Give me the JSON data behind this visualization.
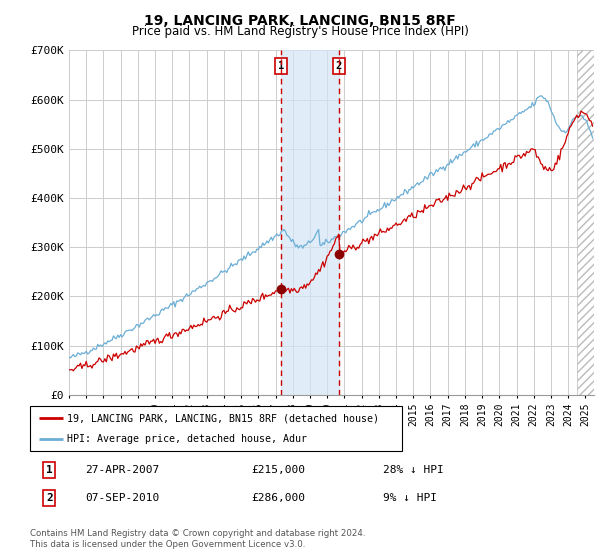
{
  "title": "19, LANCING PARK, LANCING, BN15 8RF",
  "subtitle": "Price paid vs. HM Land Registry's House Price Index (HPI)",
  "legend_line1": "19, LANCING PARK, LANCING, BN15 8RF (detached house)",
  "legend_line2": "HPI: Average price, detached house, Adur",
  "hpi_color": "#6baed6",
  "price_color": "#cc0000",
  "point_color": "#8b0000",
  "sale1_date_num": 2007.32,
  "sale1_price": 215000,
  "sale1_label": "1",
  "sale2_date_num": 2010.68,
  "sale2_price": 286000,
  "sale2_label": "2",
  "xmin": 1995.0,
  "xmax": 2025.5,
  "ymin": 0,
  "ymax": 700000,
  "yticks": [
    0,
    100000,
    200000,
    300000,
    400000,
    500000,
    600000,
    700000
  ],
  "ytick_labels": [
    "£0",
    "£100K",
    "£200K",
    "£300K",
    "£400K",
    "£500K",
    "£600K",
    "£700K"
  ],
  "shade_x1": 2007.32,
  "shade_x2": 2010.68,
  "hatch_x": 2024.5,
  "footer": "Contains HM Land Registry data © Crown copyright and database right 2024.\nThis data is licensed under the Open Government Licence v3.0.",
  "bg_color": "#ffffff",
  "grid_color": "#cccccc",
  "table_row1_num": "1",
  "table_row1_date": "27-APR-2007",
  "table_row1_price": "£215,000",
  "table_row1_hpi": "28% ↓ HPI",
  "table_row2_num": "2",
  "table_row2_date": "07-SEP-2010",
  "table_row2_price": "£286,000",
  "table_row2_hpi": "9% ↓ HPI"
}
